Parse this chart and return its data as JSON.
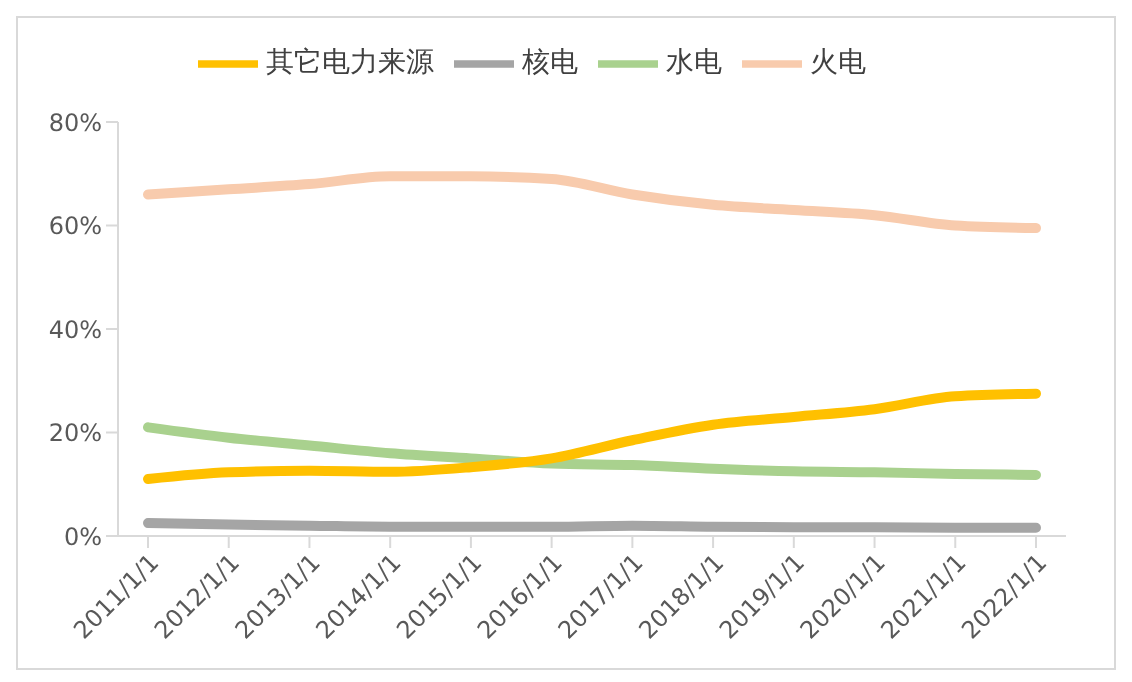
{
  "chart_data": {
    "type": "line",
    "categories": [
      "2011/1/1",
      "2012/1/1",
      "2013/1/1",
      "2014/1/1",
      "2015/1/1",
      "2016/1/1",
      "2017/1/1",
      "2018/1/1",
      "2019/1/1",
      "2020/1/1",
      "2021/1/1",
      "2022/1/1"
    ],
    "series": [
      {
        "name": "火电",
        "color": "#f8cbad",
        "values": [
          66,
          67,
          68,
          69.5,
          69.5,
          69,
          66,
          64,
          63,
          62,
          60,
          59.5
        ]
      },
      {
        "name": "水电",
        "color": "#a9d18e",
        "values": [
          21,
          19,
          17.5,
          16,
          15,
          14,
          13.7,
          13,
          12.5,
          12.3,
          12,
          11.8
        ]
      },
      {
        "name": "核电",
        "color": "#a5a5a5",
        "values": [
          2.5,
          2.2,
          2,
          1.8,
          1.8,
          1.8,
          2,
          1.8,
          1.7,
          1.7,
          1.6,
          1.6
        ]
      },
      {
        "name": "其它电力来源",
        "color": "#ffc000",
        "values": [
          11,
          12.3,
          12.6,
          12.4,
          13.3,
          15,
          18.5,
          21.5,
          23,
          24.5,
          27,
          27.5
        ]
      }
    ],
    "ylim": [
      0,
      80
    ],
    "yticks": [
      {
        "value": 0,
        "label": "0%"
      },
      {
        "value": 20,
        "label": "20%"
      },
      {
        "value": 40,
        "label": "40%"
      },
      {
        "value": 60,
        "label": "60%"
      },
      {
        "value": 80,
        "label": "80%"
      }
    ],
    "grid": false,
    "legend": "top",
    "marker": "none",
    "line_style": "solid"
  }
}
